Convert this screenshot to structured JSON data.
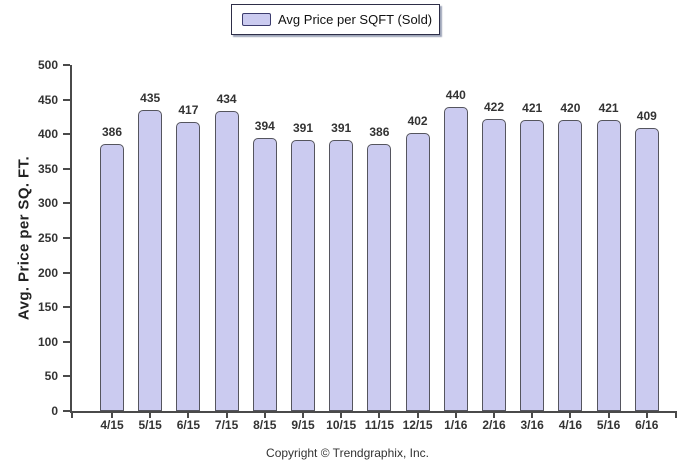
{
  "legend": {
    "label": "Avg Price per SQFT (Sold)",
    "swatch_fill": "#cbcbf0",
    "swatch_border": "#3c3c6e"
  },
  "chart_data": {
    "type": "bar",
    "title": "",
    "xlabel": "",
    "ylabel": "Avg. Price per SQ. FT.",
    "categories": [
      "4/15",
      "5/15",
      "6/15",
      "7/15",
      "8/15",
      "9/15",
      "10/15",
      "11/15",
      "12/15",
      "1/16",
      "2/16",
      "3/16",
      "4/16",
      "5/16",
      "6/16"
    ],
    "values": [
      386,
      435,
      417,
      434,
      394,
      391,
      391,
      386,
      402,
      440,
      422,
      421,
      420,
      421,
      409
    ],
    "ylim": [
      0,
      500
    ],
    "ytick_step": 50,
    "grid": false,
    "legend_entries": [
      "Avg Price per SQFT (Sold)"
    ],
    "legend_position": "top-center",
    "bar_fill": "#cbcbf0",
    "bar_border": "#55555e",
    "axis_color": "#4a4a4a"
  },
  "footer": {
    "copyright": "Copyright © Trendgraphix, Inc."
  }
}
